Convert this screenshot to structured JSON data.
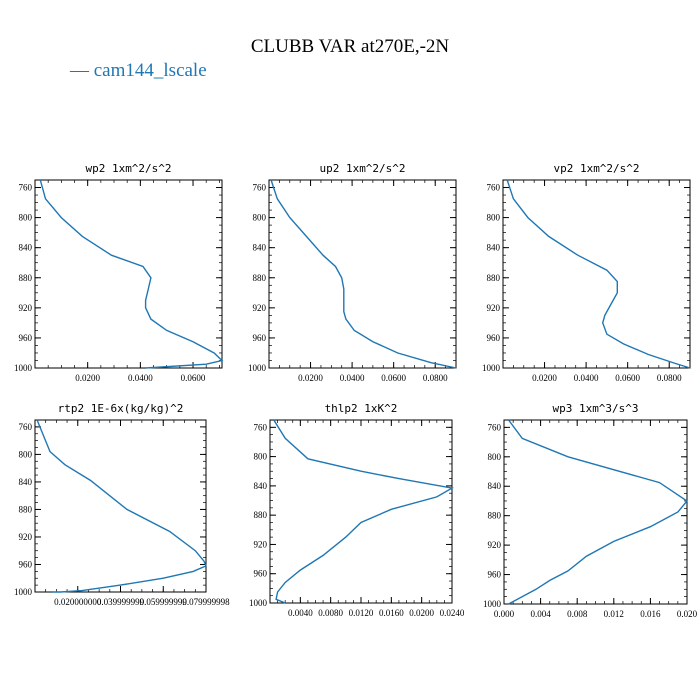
{
  "title": "CLUBB VAR at270E,-2N",
  "legend": {
    "marker": "—",
    "label": "cam144_lscale",
    "color": "#1f77b4"
  },
  "chart_data": [
    {
      "type": "line",
      "title": "wp2  1xm^2/s^2",
      "xlim": [
        0.0,
        0.071
      ],
      "ylim": [
        750,
        1000
      ],
      "x_ticks": [
        0.02,
        0.04,
        0.06
      ],
      "x_tick_labels": [
        "0.0200",
        "0.0400",
        "0.0600"
      ],
      "y_ticks": [
        760,
        800,
        840,
        880,
        920,
        960,
        1000
      ],
      "series": [
        {
          "x": [
            0.002,
            0.004,
            0.01,
            0.018,
            0.029,
            0.041,
            0.044,
            0.043,
            0.042,
            0.042,
            0.044,
            0.05,
            0.06,
            0.068,
            0.071,
            0.065,
            0.042
          ],
          "y": [
            750,
            775,
            800,
            825,
            850,
            865,
            880,
            895,
            910,
            920,
            935,
            950,
            965,
            980,
            990,
            995,
            1000
          ]
        }
      ]
    },
    {
      "type": "line",
      "title": "up2  1xm^2/s^2",
      "xlim": [
        0.0,
        0.09
      ],
      "ylim": [
        750,
        1000
      ],
      "x_ticks": [
        0.02,
        0.04,
        0.06,
        0.08
      ],
      "x_tick_labels": [
        "0.0200",
        "0.0400",
        "0.0600",
        "0.0800"
      ],
      "y_ticks": [
        760,
        800,
        840,
        880,
        920,
        960,
        1000
      ],
      "series": [
        {
          "x": [
            0.001,
            0.004,
            0.01,
            0.018,
            0.026,
            0.032,
            0.035,
            0.036,
            0.036,
            0.036,
            0.037,
            0.041,
            0.05,
            0.062,
            0.078,
            0.09
          ],
          "y": [
            750,
            775,
            800,
            825,
            850,
            865,
            880,
            895,
            910,
            925,
            935,
            950,
            965,
            980,
            993,
            1000
          ]
        }
      ]
    },
    {
      "type": "line",
      "title": "vp2  1xm^2/s^2",
      "xlim": [
        0.0,
        0.09
      ],
      "ylim": [
        750,
        1000
      ],
      "x_ticks": [
        0.02,
        0.04,
        0.06,
        0.08
      ],
      "x_tick_labels": [
        "0.0200",
        "0.0400",
        "0.0600",
        "0.0800"
      ],
      "y_ticks": [
        760,
        800,
        840,
        880,
        920,
        960,
        1000
      ],
      "series": [
        {
          "x": [
            0.002,
            0.005,
            0.012,
            0.022,
            0.036,
            0.05,
            0.055,
            0.055,
            0.052,
            0.049,
            0.048,
            0.05,
            0.058,
            0.07,
            0.083,
            0.09
          ],
          "y": [
            750,
            775,
            800,
            825,
            850,
            870,
            885,
            900,
            915,
            930,
            940,
            955,
            968,
            982,
            994,
            1000
          ]
        }
      ]
    },
    {
      "type": "line",
      "title": "rtp2  1E-6x(kg/kg)^2",
      "xlim": [
        0.0,
        0.08
      ],
      "ylim": [
        750,
        1000
      ],
      "x_ticks": [
        0.02,
        0.04,
        0.06,
        0.08
      ],
      "x_tick_labels": [
        "0.020000000",
        "0.039999999",
        "0.059999999",
        "0.079999998"
      ],
      "y_ticks": [
        760,
        800,
        840,
        880,
        920,
        960,
        1000
      ],
      "series": [
        {
          "x": [
            0.001,
            0.007,
            0.014,
            0.026,
            0.043,
            0.063,
            0.075,
            0.079,
            0.08,
            0.074,
            0.06,
            0.04,
            0.022,
            0.012,
            0.008
          ],
          "y": [
            750,
            796,
            815,
            838,
            880,
            912,
            940,
            955,
            962,
            970,
            980,
            990,
            998,
            1000,
            1000
          ]
        }
      ]
    },
    {
      "type": "line",
      "title": "thlp2  1xK^2",
      "xlim": [
        0.0,
        0.024
      ],
      "ylim": [
        750,
        1000
      ],
      "x_ticks": [
        0.004,
        0.008,
        0.012,
        0.016,
        0.02,
        0.024
      ],
      "x_tick_labels": [
        "0.0040",
        "0.0080",
        "0.0120",
        "0.0160",
        "0.0200",
        "0.0240"
      ],
      "y_ticks": [
        760,
        800,
        840,
        880,
        920,
        960,
        1000
      ],
      "series": [
        {
          "x": [
            0.0005,
            0.002,
            0.005,
            0.012,
            0.017,
            0.024,
            0.022,
            0.016,
            0.012,
            0.01,
            0.007,
            0.004,
            0.002,
            0.001,
            0.0008,
            0.002
          ],
          "y": [
            750,
            775,
            803,
            820,
            830,
            843,
            855,
            872,
            890,
            910,
            935,
            955,
            972,
            985,
            995,
            1000
          ]
        }
      ]
    },
    {
      "type": "line",
      "title": "wp3  1xm^3/s^3",
      "xlim": [
        0.0,
        0.02
      ],
      "ylim": [
        750,
        1000
      ],
      "x_ticks": [
        0.0,
        0.004,
        0.008,
        0.012,
        0.016,
        0.02
      ],
      "x_tick_labels": [
        "0.000",
        "0.004",
        "0.008",
        "0.012",
        "0.016",
        "0.020"
      ],
      "y_ticks": [
        760,
        800,
        840,
        880,
        920,
        960,
        1000
      ],
      "series": [
        {
          "x": [
            0.0005,
            0.002,
            0.007,
            0.017,
            0.02,
            0.019,
            0.016,
            0.012,
            0.009,
            0.007,
            0.005,
            0.0035,
            0.002,
            0.0005
          ],
          "y": [
            750,
            775,
            800,
            835,
            860,
            875,
            895,
            915,
            935,
            955,
            968,
            980,
            990,
            1000
          ]
        }
      ]
    }
  ]
}
